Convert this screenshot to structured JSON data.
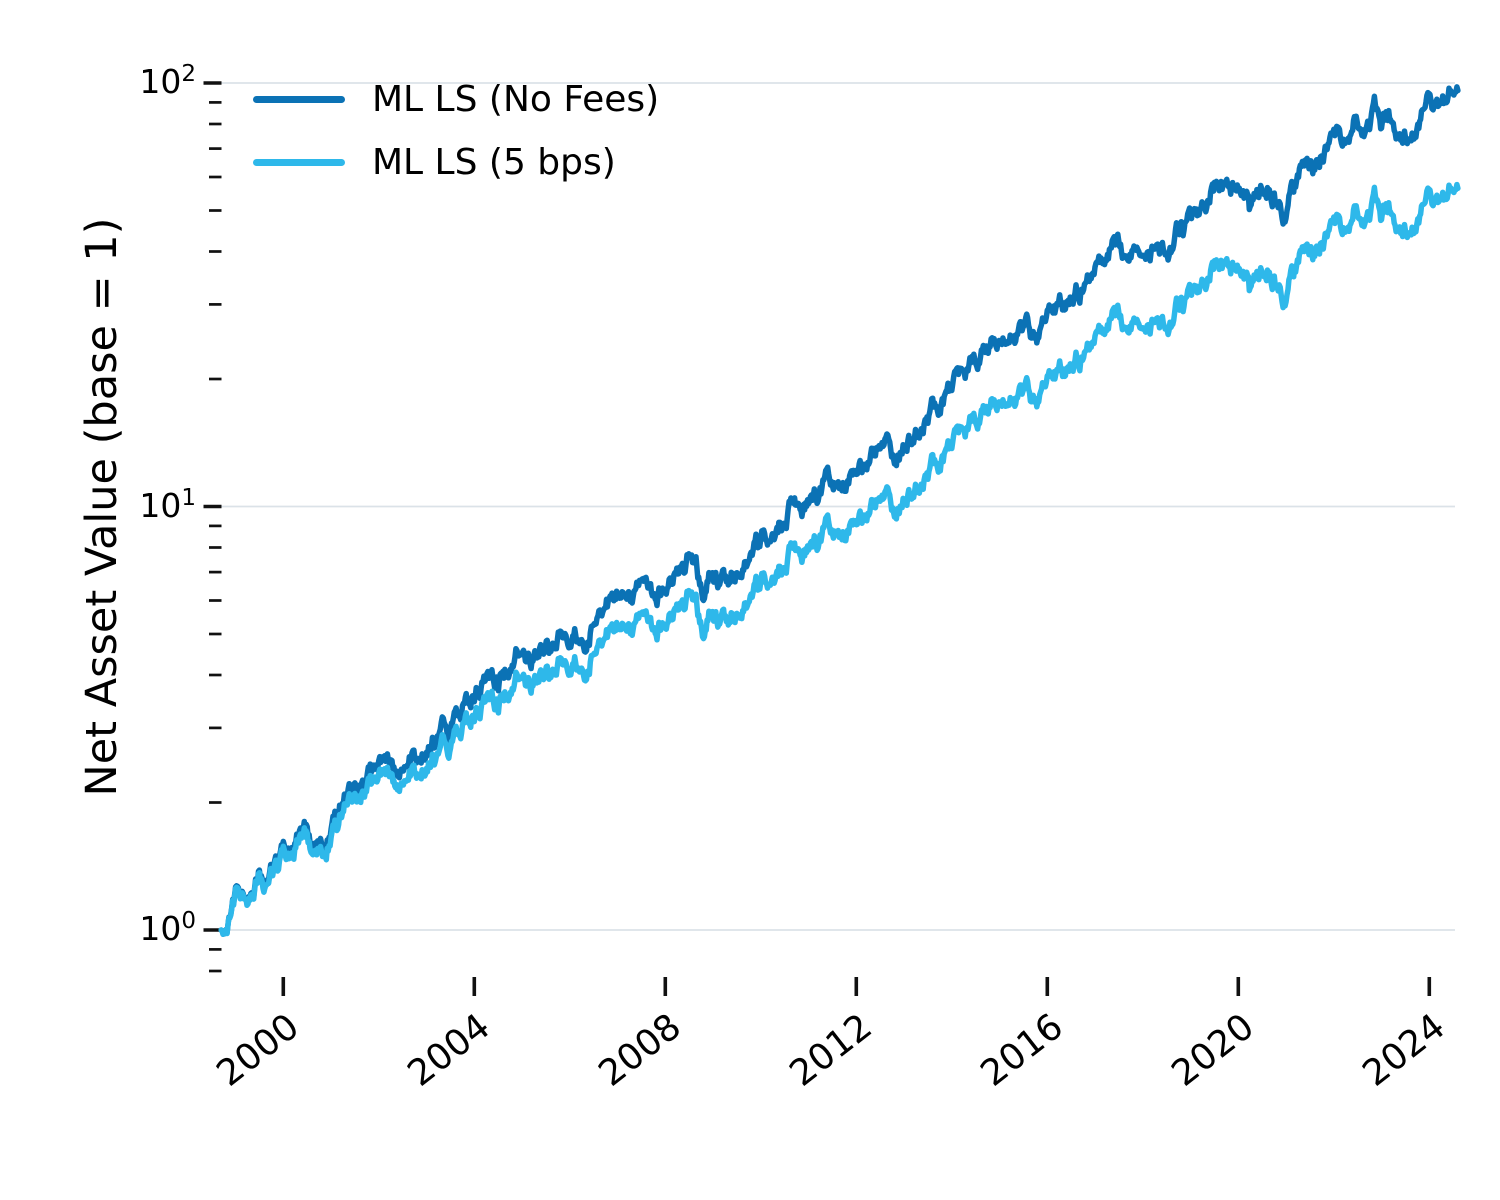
{
  "chart_data": {
    "type": "line",
    "title": "",
    "xlabel": "",
    "ylabel": "Net Asset Value (base = 1)",
    "y_scale": "log",
    "x_ticks": [
      2000,
      2004,
      2008,
      2012,
      2016,
      2020,
      2024
    ],
    "y_major_ticks": [
      {
        "value": 1,
        "exp": 0
      },
      {
        "value": 10,
        "exp": 1
      },
      {
        "value": 100,
        "exp": 2
      }
    ],
    "y_minor_ticks": [
      0.8,
      0.9,
      2,
      3,
      4,
      5,
      6,
      7,
      8,
      9,
      20,
      30,
      40,
      50,
      60,
      70,
      80,
      90
    ],
    "xlim": [
      1998.5,
      2025.3
    ],
    "ylim": [
      0.77,
      112
    ],
    "grid": "horizontal-major",
    "colors": {
      "grid": "#dbe2e8",
      "axis": "#111111",
      "text": "#000000",
      "background": "#ffffff"
    },
    "legend": {
      "location": "upper-left",
      "frame": false
    },
    "series": [
      {
        "name": "ML LS (No Fees)",
        "color": "#0b72b5",
        "points": [
          [
            1998.7,
            1.0
          ],
          [
            1998.78,
            0.97
          ],
          [
            1999.0,
            1.18
          ],
          [
            1999.2,
            1.27
          ],
          [
            1999.3,
            1.23
          ],
          [
            1999.5,
            1.39
          ],
          [
            1999.65,
            1.31
          ],
          [
            1999.8,
            1.4
          ],
          [
            2000.0,
            1.5
          ],
          [
            2000.3,
            1.63
          ],
          [
            2000.5,
            1.7
          ],
          [
            2000.8,
            1.6
          ],
          [
            2001.0,
            1.78
          ],
          [
            2001.2,
            2.0
          ],
          [
            2001.5,
            2.15
          ],
          [
            2001.8,
            2.33
          ],
          [
            2002.0,
            2.45
          ],
          [
            2002.2,
            2.56
          ],
          [
            2002.45,
            2.36
          ],
          [
            2002.6,
            2.66
          ],
          [
            2002.85,
            2.45
          ],
          [
            2003.0,
            2.62
          ],
          [
            2003.35,
            2.92
          ],
          [
            2003.6,
            3.13
          ],
          [
            2003.85,
            3.4
          ],
          [
            2004.0,
            3.63
          ],
          [
            2004.2,
            3.85
          ],
          [
            2004.35,
            4.07
          ],
          [
            2004.6,
            3.92
          ],
          [
            2004.95,
            4.54
          ],
          [
            2005.15,
            4.35
          ],
          [
            2005.45,
            4.7
          ],
          [
            2005.7,
            4.82
          ],
          [
            2006.0,
            5.17
          ],
          [
            2006.35,
            5.02
          ],
          [
            2006.55,
            5.56
          ],
          [
            2006.75,
            5.86
          ],
          [
            2007.0,
            6.25
          ],
          [
            2007.25,
            6.05
          ],
          [
            2007.5,
            6.2
          ],
          [
            2007.75,
            6.28
          ],
          [
            2008.0,
            6.35
          ],
          [
            2008.3,
            7.1
          ],
          [
            2008.55,
            7.9
          ],
          [
            2008.7,
            6.9
          ],
          [
            2008.8,
            6.25
          ],
          [
            2008.95,
            7.1
          ],
          [
            2009.1,
            6.55
          ],
          [
            2009.4,
            7.0
          ],
          [
            2009.7,
            7.6
          ],
          [
            2010.0,
            8.3
          ],
          [
            2010.3,
            8.9
          ],
          [
            2010.65,
            10.0
          ],
          [
            2010.9,
            9.6
          ],
          [
            2011.2,
            10.8
          ],
          [
            2011.5,
            11.5
          ],
          [
            2011.8,
            11.2
          ],
          [
            2012.0,
            12.3
          ],
          [
            2012.3,
            13.0
          ],
          [
            2012.6,
            13.6
          ],
          [
            2012.8,
            13.3
          ],
          [
            2013.0,
            14.2
          ],
          [
            2013.5,
            16.0
          ],
          [
            2014.0,
            18.5
          ],
          [
            2014.4,
            20.8
          ],
          [
            2014.7,
            22.5
          ],
          [
            2015.05,
            26.0
          ],
          [
            2015.3,
            24.5
          ],
          [
            2015.55,
            26.0
          ],
          [
            2015.8,
            25.2
          ],
          [
            2016.0,
            28.0
          ],
          [
            2016.4,
            30.0
          ],
          [
            2017.0,
            35.5
          ],
          [
            2017.4,
            41.0
          ],
          [
            2017.65,
            40.0
          ],
          [
            2018.0,
            43.5
          ],
          [
            2018.25,
            39.5
          ],
          [
            2018.55,
            42.0
          ],
          [
            2019.0,
            47.0
          ],
          [
            2019.5,
            56.8
          ],
          [
            2019.8,
            55.0
          ],
          [
            2020.1,
            58.0
          ],
          [
            2020.25,
            48.5
          ],
          [
            2020.45,
            53.0
          ],
          [
            2020.65,
            57.5
          ],
          [
            2021.0,
            50.0
          ],
          [
            2021.3,
            62.5
          ],
          [
            2021.6,
            65.5
          ],
          [
            2021.8,
            70.0
          ],
          [
            2022.1,
            77.0
          ],
          [
            2022.3,
            73.0
          ],
          [
            2022.45,
            80.5
          ],
          [
            2022.65,
            74.6
          ],
          [
            2022.85,
            84.0
          ],
          [
            2023.0,
            77.5
          ],
          [
            2023.15,
            85.0
          ],
          [
            2023.4,
            76.0
          ],
          [
            2023.6,
            75.2
          ],
          [
            2023.8,
            81.0
          ],
          [
            2023.95,
            86.0
          ],
          [
            2024.1,
            83.0
          ],
          [
            2024.3,
            87.5
          ],
          [
            2024.45,
            93.5
          ],
          [
            2024.6,
            96.0
          ]
        ]
      },
      {
        "name": "ML LS (5 bps)",
        "color": "#2eb8ea",
        "points": [
          [
            1998.7,
            1.0
          ],
          [
            1998.78,
            0.97
          ],
          [
            1999.0,
            1.17
          ],
          [
            1999.2,
            1.26
          ],
          [
            1999.3,
            1.22
          ],
          [
            1999.5,
            1.37
          ],
          [
            1999.65,
            1.28
          ],
          [
            1999.8,
            1.37
          ],
          [
            2000.0,
            1.46
          ],
          [
            2000.3,
            1.58
          ],
          [
            2000.5,
            1.64
          ],
          [
            2000.8,
            1.53
          ],
          [
            2001.0,
            1.7
          ],
          [
            2001.2,
            1.9
          ],
          [
            2001.5,
            2.03
          ],
          [
            2001.8,
            2.19
          ],
          [
            2002.0,
            2.29
          ],
          [
            2002.2,
            2.38
          ],
          [
            2002.45,
            2.19
          ],
          [
            2002.6,
            2.46
          ],
          [
            2002.85,
            2.25
          ],
          [
            2003.0,
            2.4
          ],
          [
            2003.35,
            2.65
          ],
          [
            2003.6,
            2.83
          ],
          [
            2003.85,
            3.06
          ],
          [
            2004.0,
            3.26
          ],
          [
            2004.2,
            3.44
          ],
          [
            2004.35,
            3.62
          ],
          [
            2004.6,
            3.47
          ],
          [
            2004.95,
            3.99
          ],
          [
            2005.15,
            3.81
          ],
          [
            2005.45,
            4.09
          ],
          [
            2005.7,
            4.18
          ],
          [
            2006.0,
            4.45
          ],
          [
            2006.35,
            4.29
          ],
          [
            2006.55,
            4.73
          ],
          [
            2006.75,
            4.97
          ],
          [
            2007.0,
            5.27
          ],
          [
            2007.25,
            5.08
          ],
          [
            2007.5,
            5.18
          ],
          [
            2007.75,
            5.22
          ],
          [
            2008.0,
            5.25
          ],
          [
            2008.3,
            5.83
          ],
          [
            2008.55,
            6.46
          ],
          [
            2008.7,
            5.62
          ],
          [
            2008.8,
            5.08
          ],
          [
            2008.95,
            5.75
          ],
          [
            2009.1,
            5.29
          ],
          [
            2009.4,
            5.62
          ],
          [
            2009.7,
            6.07
          ],
          [
            2010.0,
            6.58
          ],
          [
            2010.3,
            7.02
          ],
          [
            2010.65,
            7.83
          ],
          [
            2010.9,
            7.48
          ],
          [
            2011.2,
            8.36
          ],
          [
            2011.5,
            8.85
          ],
          [
            2011.8,
            8.56
          ],
          [
            2012.0,
            9.36
          ],
          [
            2012.3,
            9.84
          ],
          [
            2012.6,
            10.2
          ],
          [
            2012.8,
            9.96
          ],
          [
            2013.0,
            10.6
          ],
          [
            2013.5,
            11.8
          ],
          [
            2014.0,
            13.5
          ],
          [
            2014.4,
            15.1
          ],
          [
            2014.7,
            16.2
          ],
          [
            2015.05,
            18.6
          ],
          [
            2015.3,
            17.4
          ],
          [
            2015.55,
            18.4
          ],
          [
            2015.8,
            17.8
          ],
          [
            2016.0,
            19.6
          ],
          [
            2016.4,
            20.9
          ],
          [
            2017.0,
            24.4
          ],
          [
            2017.4,
            27.9
          ],
          [
            2017.65,
            27.1
          ],
          [
            2018.0,
            29.3
          ],
          [
            2018.25,
            26.5
          ],
          [
            2018.55,
            28.0
          ],
          [
            2019.0,
            31.0
          ],
          [
            2019.5,
            37.1
          ],
          [
            2019.8,
            35.7
          ],
          [
            2020.1,
            37.4
          ],
          [
            2020.25,
            31.2
          ],
          [
            2020.45,
            33.9
          ],
          [
            2020.65,
            36.7
          ],
          [
            2021.0,
            31.7
          ],
          [
            2021.3,
            39.3
          ],
          [
            2021.6,
            41.0
          ],
          [
            2021.8,
            43.6
          ],
          [
            2022.1,
            47.7
          ],
          [
            2022.3,
            45.0
          ],
          [
            2022.45,
            49.5
          ],
          [
            2022.65,
            45.7
          ],
          [
            2022.85,
            51.2
          ],
          [
            2023.0,
            47.1
          ],
          [
            2023.15,
            51.5
          ],
          [
            2023.4,
            45.8
          ],
          [
            2023.6,
            45.1
          ],
          [
            2023.8,
            48.4
          ],
          [
            2023.95,
            51.2
          ],
          [
            2024.1,
            49.3
          ],
          [
            2024.3,
            51.8
          ],
          [
            2024.45,
            55.1
          ],
          [
            2024.6,
            56.4
          ]
        ]
      }
    ]
  }
}
